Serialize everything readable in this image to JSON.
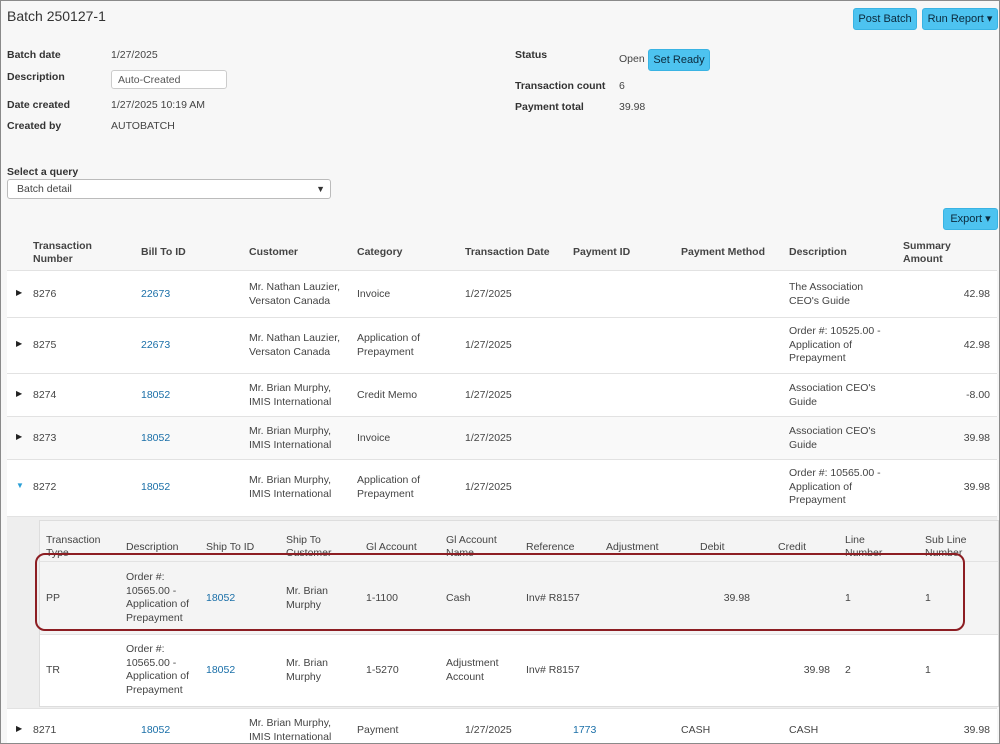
{
  "page": {
    "title": "Batch 250127-1"
  },
  "toolbar": {
    "post_batch": "Post Batch",
    "run_report": "Run Report ▾",
    "export": "Export ▾"
  },
  "info": {
    "batch_date_label": "Batch date",
    "batch_date": "1/27/2025",
    "description_label": "Description",
    "description": "Auto-Created",
    "date_created_label": "Date created",
    "date_created": "1/27/2025 10:19 AM",
    "created_by_label": "Created by",
    "created_by": "AUTOBATCH",
    "status_label": "Status",
    "status": "Open",
    "set_ready": "Set Ready",
    "count_label": "Transaction count",
    "count": "6",
    "total_label": "Payment total",
    "total": "39.98"
  },
  "query": {
    "label": "Select a query",
    "selected": "Batch detail"
  },
  "table": {
    "headers": {
      "number": "Transaction Number",
      "bill_to": "Bill To ID",
      "customer": "Customer",
      "category": "Category",
      "date": "Transaction Date",
      "payment_id": "Payment ID",
      "method": "Payment Method",
      "description": "Description",
      "amount": "Summary Amount"
    },
    "rows": [
      {
        "number": "8276",
        "bill_to": "22673",
        "customer": "Mr. Nathan Lauzier, Versaton Canada",
        "category": "Invoice",
        "date": "1/27/2025",
        "payment_id": "",
        "method": "",
        "description": "The Association CEO's Guide",
        "amount": "42.98"
      },
      {
        "number": "8275",
        "bill_to": "22673",
        "customer": "Mr. Nathan Lauzier, Versaton Canada",
        "category": "Application of Prepayment",
        "date": "1/27/2025",
        "payment_id": "",
        "method": "",
        "description": "Order #: 10525.00 - Application of Prepayment",
        "amount": "42.98"
      },
      {
        "number": "8274",
        "bill_to": "18052",
        "customer": "Mr. Brian Murphy, IMIS International",
        "category": "Credit Memo",
        "date": "1/27/2025",
        "payment_id": "",
        "method": "",
        "description": "Association CEO's Guide",
        "amount": "-8.00"
      },
      {
        "number": "8273",
        "bill_to": "18052",
        "customer": "Mr. Brian Murphy, IMIS International",
        "category": "Invoice",
        "date": "1/27/2025",
        "payment_id": "",
        "method": "",
        "description": "Association CEO's Guide",
        "amount": "39.98"
      },
      {
        "number": "8272",
        "bill_to": "18052",
        "customer": "Mr. Brian Murphy, IMIS International",
        "category": "Application of Prepayment",
        "date": "1/27/2025",
        "payment_id": "",
        "method": "",
        "description": "Order #: 10565.00 - Application of Prepayment",
        "amount": "39.98"
      },
      {
        "number": "8271",
        "bill_to": "18052",
        "customer": "Mr. Brian Murphy, IMIS International",
        "category": "Payment",
        "date": "1/27/2025",
        "payment_id": "1773",
        "method": "CASH",
        "description": "CASH",
        "amount": "39.98"
      }
    ]
  },
  "detail": {
    "headers": {
      "type": "Transaction Type",
      "description": "Description",
      "ship_to": "Ship To ID",
      "ship_customer": "Ship To Customer",
      "gl_account": "Gl Account",
      "gl_name": "Gl Account Name",
      "reference": "Reference",
      "adjustment": "Adjustment",
      "debit": "Debit",
      "credit": "Credit",
      "line": "Line Number",
      "sub_line": "Sub Line Number"
    },
    "rows": [
      {
        "type": "PP",
        "description": "Order #: 10565.00 - Application of Prepayment",
        "ship_to": "18052",
        "ship_customer": "Mr. Brian Murphy",
        "gl_account": "1-1100",
        "gl_name": "Cash",
        "reference": "Inv# R8157",
        "adjustment": "",
        "debit": "39.98",
        "credit": "",
        "line": "1",
        "sub_line": "1"
      },
      {
        "type": "TR",
        "description": "Order #: 10565.00 - Application of Prepayment",
        "ship_to": "18052",
        "ship_customer": "Mr. Brian Murphy",
        "gl_account": "1-5270",
        "gl_name": "Adjustment Account",
        "reference": "Inv# R8157",
        "adjustment": "",
        "debit": "",
        "credit": "39.98",
        "line": "2",
        "sub_line": "1"
      }
    ]
  },
  "colors": {
    "accent": "#4dc3f0",
    "link": "#1a6fa8",
    "highlight": "#8c1d22"
  }
}
